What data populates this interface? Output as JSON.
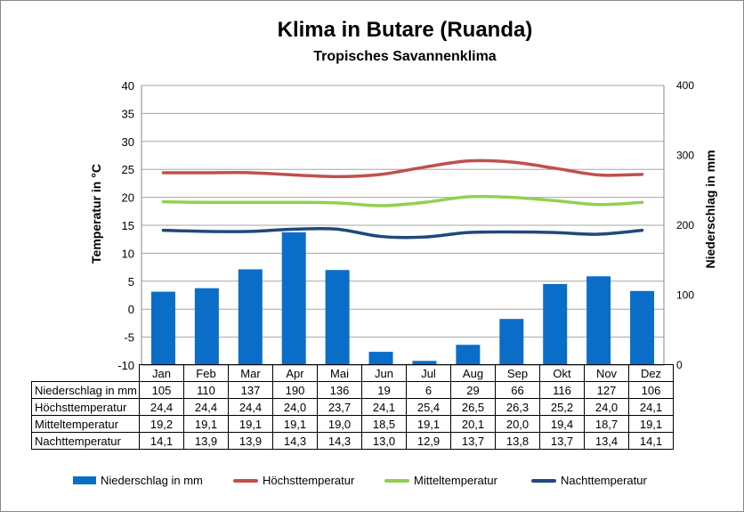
{
  "chart_data": {
    "type": "bar",
    "title": "Klima in Butare (Ruanda)",
    "subtitle": "Tropisches Savannenklima",
    "ylabel_left": "Temperatur in °C",
    "ylabel_right": "Niederschlag in mm",
    "ylim_left": [
      -10,
      40
    ],
    "ylim_right": [
      0,
      400
    ],
    "yticks_left": [
      "40",
      "35",
      "30",
      "25",
      "20",
      "15",
      "10",
      "5",
      "0",
      "-5",
      "-10"
    ],
    "yticks_right": [
      "400",
      "300",
      "200",
      "100",
      "0"
    ],
    "categories": [
      "Jan",
      "Feb",
      "Mar",
      "Apr",
      "Mai",
      "Jun",
      "Jul",
      "Aug",
      "Sep",
      "Okt",
      "Nov",
      "Dez"
    ],
    "series": [
      {
        "name": "Niederschlag in mm",
        "kind": "bar",
        "axis": "right",
        "color": "#0a6ec8",
        "values": [
          105,
          110,
          137,
          190,
          136,
          19,
          6,
          29,
          66,
          116,
          127,
          106
        ],
        "labels": [
          "105",
          "110",
          "137",
          "190",
          "136",
          "19",
          "6",
          "29",
          "66",
          "116",
          "127",
          "106"
        ]
      },
      {
        "name": "Höchsttemperatur",
        "kind": "line",
        "axis": "left",
        "color": "#c0504d",
        "values": [
          24.4,
          24.4,
          24.4,
          24.0,
          23.7,
          24.1,
          25.4,
          26.5,
          26.3,
          25.2,
          24.0,
          24.1
        ],
        "labels": [
          "24,4",
          "24,4",
          "24,4",
          "24,0",
          "23,7",
          "24,1",
          "25,4",
          "26,5",
          "26,3",
          "25,2",
          "24,0",
          "24,1"
        ]
      },
      {
        "name": "Mitteltemperatur",
        "kind": "line",
        "axis": "left",
        "color": "#92d050",
        "values": [
          19.2,
          19.1,
          19.1,
          19.1,
          19.0,
          18.5,
          19.1,
          20.1,
          20.0,
          19.4,
          18.7,
          19.1
        ],
        "labels": [
          "19,2",
          "19,1",
          "19,1",
          "19,1",
          "19,0",
          "18,5",
          "19,1",
          "20,1",
          "20,0",
          "19,4",
          "18,7",
          "19,1"
        ]
      },
      {
        "name": "Nachttemperatur",
        "kind": "line",
        "axis": "left",
        "color": "#1f497d",
        "values": [
          14.1,
          13.9,
          13.9,
          14.3,
          14.3,
          13.0,
          12.9,
          13.7,
          13.8,
          13.7,
          13.4,
          14.1
        ],
        "labels": [
          "14,1",
          "13,9",
          "13,9",
          "14,3",
          "14,3",
          "13,0",
          "12,9",
          "13,7",
          "13,8",
          "13,7",
          "13,4",
          "14,1"
        ]
      }
    ],
    "grid": true,
    "legend": "bottom"
  }
}
